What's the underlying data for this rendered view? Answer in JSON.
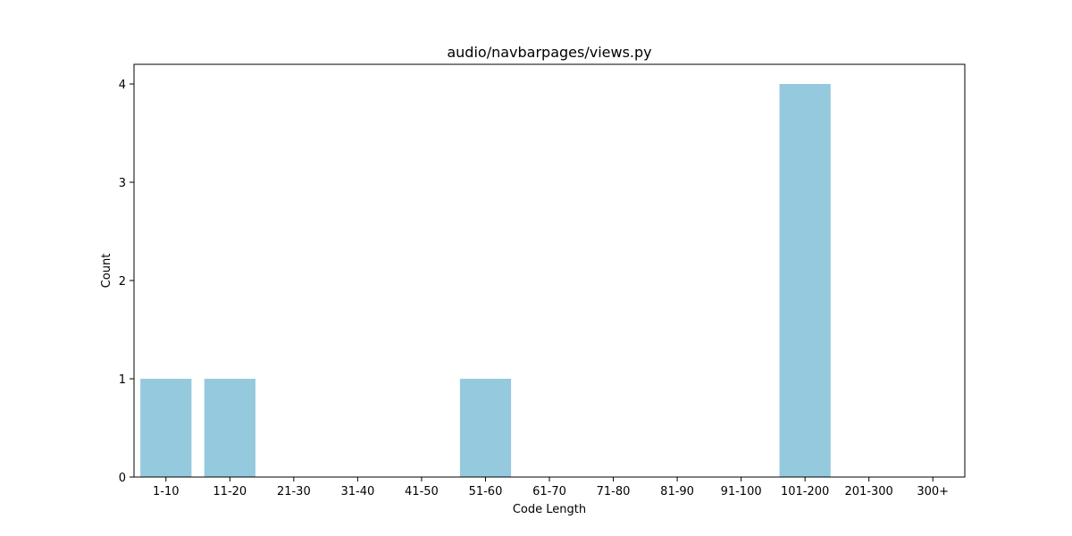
{
  "chart_data": {
    "type": "bar",
    "title": "audio/navbarpages/views.py",
    "xlabel": "Code Length",
    "ylabel": "Count",
    "categories": [
      "1-10",
      "11-20",
      "21-30",
      "31-40",
      "41-50",
      "51-60",
      "61-70",
      "71-80",
      "81-90",
      "91-100",
      "101-200",
      "201-300",
      "300+"
    ],
    "values": [
      1,
      1,
      0,
      0,
      0,
      1,
      0,
      0,
      0,
      0,
      4,
      0,
      0
    ],
    "ylim": [
      0,
      4.2
    ],
    "yticks": [
      0,
      1,
      2,
      3,
      4
    ],
    "grid": false,
    "bar_color": "#95c9de"
  }
}
